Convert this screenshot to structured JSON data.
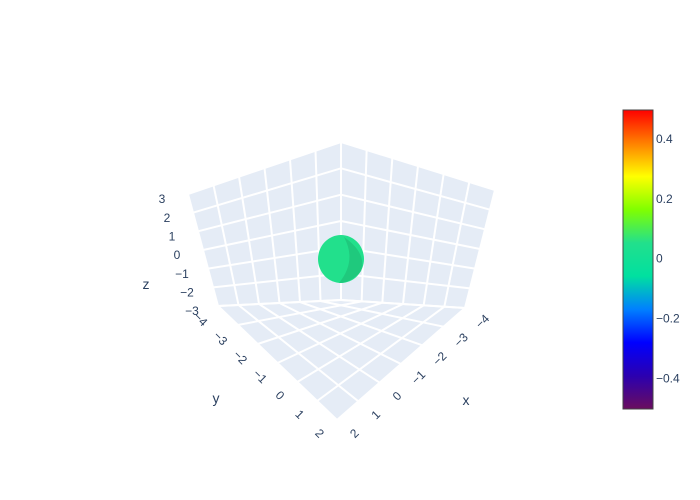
{
  "chart_data": {
    "type": "isosurface-3d",
    "scene": {
      "background": "#e5ecf6",
      "grid_color": "#ffffff",
      "axis_text_color": "#2a3f5f",
      "x": {
        "title": "x",
        "range": [
          -4,
          2
        ],
        "ticks": [
          "−4",
          "−3",
          "−2",
          "−1",
          "0",
          "1",
          "2"
        ]
      },
      "y": {
        "title": "y",
        "range": [
          -4,
          2
        ],
        "ticks": [
          "−4",
          "−3",
          "−2",
          "−1",
          "0",
          "1",
          "2"
        ]
      },
      "z": {
        "title": "z",
        "range": [
          -3,
          3
        ],
        "ticks": [
          "−3",
          "−2",
          "−1",
          "0",
          "1",
          "2",
          "3"
        ]
      }
    },
    "surface": {
      "isovalue": 0,
      "color": "#22e08c",
      "shade_color": "#1fc97d",
      "center": {
        "x": 0,
        "y": 0,
        "z": 0
      },
      "radius": 0.8
    },
    "colorbar": {
      "range": [
        -0.5,
        0.5
      ],
      "tick_values": [
        0.4,
        0.2,
        0,
        -0.2,
        -0.4
      ],
      "tick_labels": [
        "0.4",
        "0.2",
        "0",
        "−0.2",
        "−0.4"
      ],
      "colorscale": [
        "#6a0d5e",
        "#2b00b0",
        "#0000ff",
        "#0080ff",
        "#00e0a0",
        "#22e08c",
        "#80ff00",
        "#ffff00",
        "#ff8000",
        "#ff0000"
      ]
    }
  }
}
